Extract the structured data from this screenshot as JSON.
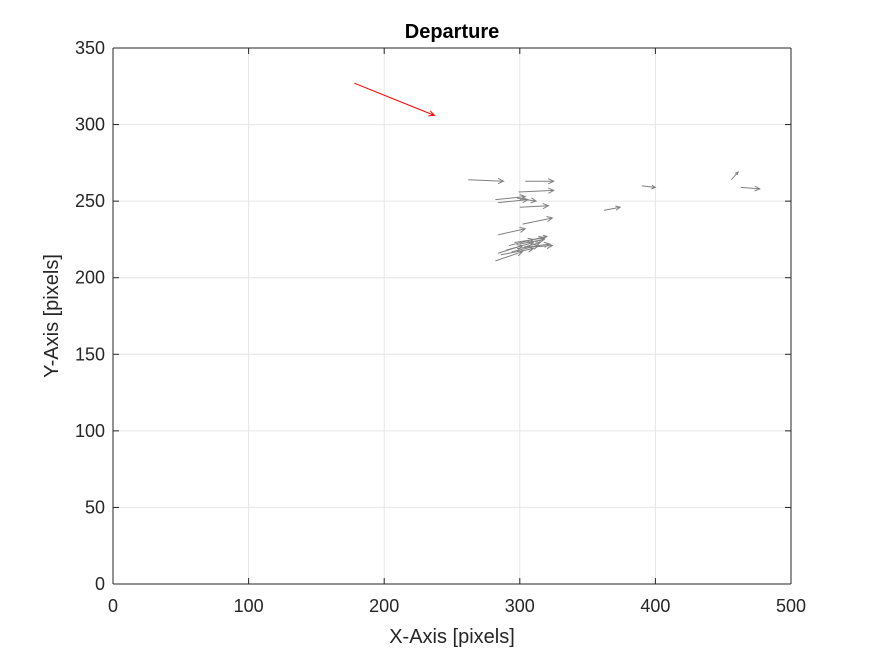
{
  "chart_data": {
    "type": "quiver",
    "title": "Departure",
    "xlabel": "X-Axis [pixels]",
    "ylabel": "Y-Axis [pixels]",
    "xlim": [
      0,
      500
    ],
    "ylim": [
      0,
      350
    ],
    "xticks": [
      "0",
      "100",
      "200",
      "300",
      "400",
      "500"
    ],
    "yticks": [
      "0",
      "50",
      "100",
      "150",
      "200",
      "250",
      "300",
      "350"
    ],
    "grid": true,
    "colors": {
      "primary": "#ff0000",
      "secondary": "#808080",
      "grid": "#e6e6e6",
      "axis": "#262626"
    },
    "series": [
      {
        "color": "#ff0000",
        "vectors": [
          {
            "x": 178,
            "y": 327,
            "u": 59,
            "v": -21
          }
        ]
      },
      {
        "color": "#808080",
        "vectors": [
          {
            "x": 262,
            "y": 264,
            "u": 26,
            "v": -1
          },
          {
            "x": 304,
            "y": 263,
            "u": 21,
            "v": 0
          },
          {
            "x": 299,
            "y": 256,
            "u": 26,
            "v": 1
          },
          {
            "x": 282,
            "y": 251,
            "u": 22,
            "v": 2
          },
          {
            "x": 284,
            "y": 249,
            "u": 22,
            "v": 2
          },
          {
            "x": 298,
            "y": 252,
            "u": 14,
            "v": -2
          },
          {
            "x": 300,
            "y": 246,
            "u": 21,
            "v": 1
          },
          {
            "x": 302,
            "y": 235,
            "u": 22,
            "v": 4
          },
          {
            "x": 284,
            "y": 228,
            "u": 20,
            "v": 4
          },
          {
            "x": 362,
            "y": 244,
            "u": 12,
            "v": 2
          },
          {
            "x": 390,
            "y": 260,
            "u": 10,
            "v": -1
          },
          {
            "x": 456,
            "y": 264,
            "u": 5,
            "v": 5
          },
          {
            "x": 463,
            "y": 259,
            "u": 14,
            "v": -1
          },
          {
            "x": 282,
            "y": 211,
            "u": 20,
            "v": 6
          },
          {
            "x": 284,
            "y": 216,
            "u": 18,
            "v": 5
          },
          {
            "x": 286,
            "y": 215,
            "u": 24,
            "v": 4
          },
          {
            "x": 290,
            "y": 218,
            "u": 20,
            "v": 5
          },
          {
            "x": 294,
            "y": 217,
            "u": 20,
            "v": 4
          },
          {
            "x": 292,
            "y": 221,
            "u": 18,
            "v": 4
          },
          {
            "x": 298,
            "y": 219,
            "u": 24,
            "v": 3
          },
          {
            "x": 300,
            "y": 222,
            "u": 18,
            "v": 3
          },
          {
            "x": 296,
            "y": 223,
            "u": 22,
            "v": 3
          },
          {
            "x": 303,
            "y": 220,
            "u": 12,
            "v": 3
          },
          {
            "x": 308,
            "y": 220,
            "u": 16,
            "v": 1
          },
          {
            "x": 310,
            "y": 225,
            "u": 10,
            "v": 2
          }
        ]
      }
    ]
  }
}
